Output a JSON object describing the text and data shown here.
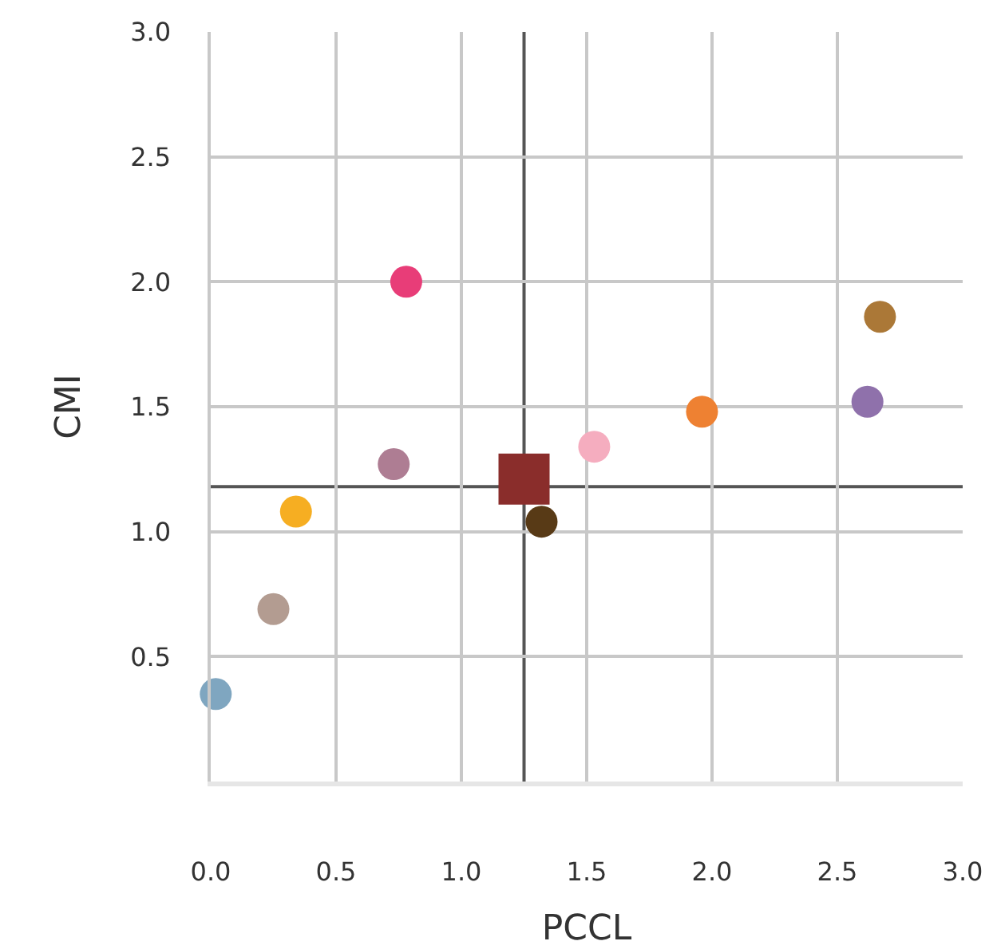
{
  "chart_data": {
    "type": "scatter",
    "xlabel": "PCCL",
    "ylabel": "CMI",
    "xlim": [
      0,
      3
    ],
    "ylim": [
      0,
      3
    ],
    "xticks": [
      {
        "value": 0,
        "label": "0.0"
      },
      0.5,
      {
        "value": 1,
        "label": "1.0"
      },
      1.5,
      {
        "value": 2,
        "label": "2.0"
      },
      2.5,
      {
        "value": 3,
        "label": "3.0"
      }
    ],
    "yticks": [
      {
        "value": 0.5,
        "label": "0.5"
      },
      {
        "value": 1,
        "label": "1.0"
      },
      1.5,
      {
        "value": 2,
        "label": "2.0"
      },
      2.5,
      {
        "value": 3,
        "label": "3.0"
      }
    ],
    "grid": true,
    "series": [
      {
        "marker": "circle",
        "x": [
          0.02,
          0.25,
          0.34,
          0.73,
          0.78,
          1.32,
          1.53,
          1.96,
          2.62,
          2.67
        ],
        "values": [
          0.35,
          0.69,
          1.08,
          1.27,
          2.0,
          1.04,
          1.34,
          1.48,
          1.52,
          1.86
        ],
        "colors": [
          "#7fa6c0",
          "#b39c91",
          "#f6ae22",
          "#ae7d93",
          "#e83d78",
          "#583a16",
          "#f5adbf",
          "#ee8132",
          "#8f71ab",
          "#ab7837"
        ]
      },
      {
        "marker": "square",
        "x": [
          1.25
        ],
        "values": [
          1.21
        ],
        "color": "#8a2d2b"
      }
    ],
    "ref_lines": [
      {
        "axis": "x",
        "value": 1.25,
        "color": "#555555"
      },
      {
        "axis": "y",
        "value": 1.18,
        "color": "#555555"
      }
    ]
  }
}
